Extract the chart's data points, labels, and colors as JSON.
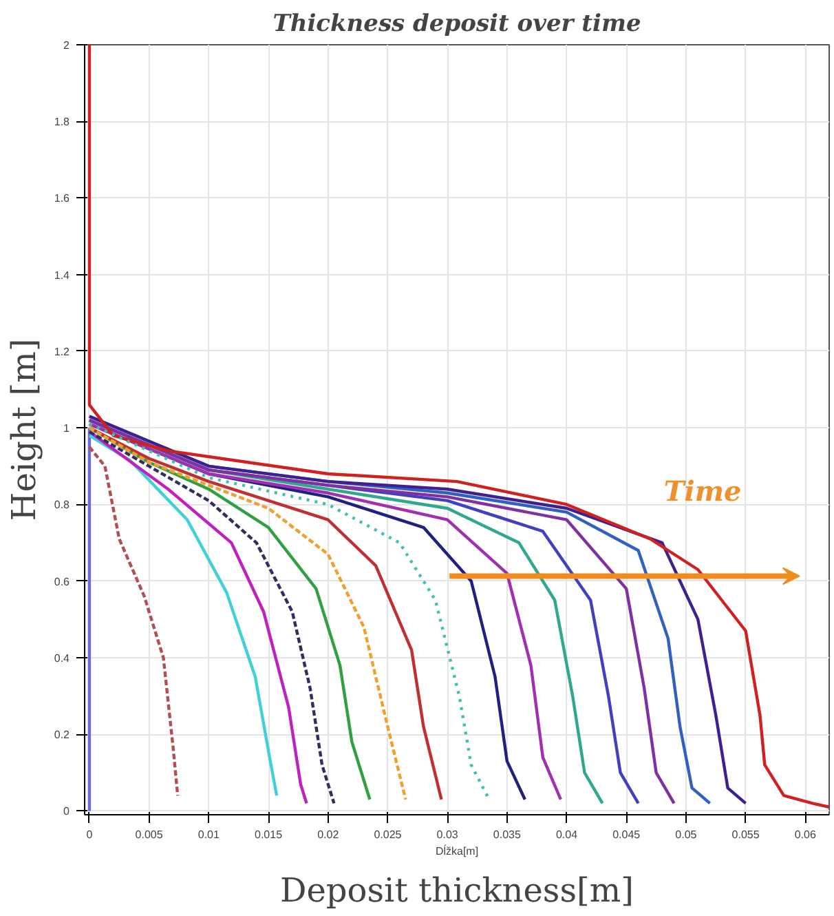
{
  "chart_data": {
    "type": "line",
    "title": "Thickness deposit over time",
    "xlabel": "Deposit thickness[m]",
    "ylabel": "Height [m]",
    "annotations": [
      "Dĺžka[m]",
      "Time"
    ],
    "xlim": [
      -0.0004,
      0.062
    ],
    "ylim": [
      -0.01,
      2
    ],
    "xticks": [
      0,
      0.005,
      0.01,
      0.015,
      0.02,
      0.025,
      0.03,
      0.035,
      0.04,
      0.045,
      0.05,
      0.055,
      0.06
    ],
    "yticks": [
      0,
      0.2,
      0.4,
      0.6,
      0.8,
      1,
      1.2,
      1.4,
      1.6,
      1.8,
      2
    ],
    "grid": true,
    "marker": "none",
    "series": [
      {
        "color": "#6a6ad8",
        "line_style": "solid",
        "x": [
          0,
          0
        ],
        "values": [
          0,
          1.0
        ]
      },
      {
        "color": "#b05050",
        "line_style": "dashed",
        "x": [
          0,
          0.0013,
          0.0025,
          0.0046,
          0.0062,
          0.007,
          0.0074
        ],
        "values": [
          0.95,
          0.9,
          0.71,
          0.56,
          0.4,
          0.17,
          0.04
        ]
      },
      {
        "color": "#40d0d8",
        "line_style": "solid",
        "x": [
          0,
          0.0034,
          0.0082,
          0.0115,
          0.0139,
          0.0151,
          0.0157
        ],
        "values": [
          0.98,
          0.915,
          0.76,
          0.57,
          0.35,
          0.14,
          0.04
        ]
      },
      {
        "color": "#c020c0",
        "line_style": "solid",
        "x": [
          0,
          0.0066,
          0.0119,
          0.0146,
          0.0167,
          0.0177,
          0.0182
        ],
        "values": [
          0.99,
          0.84,
          0.7,
          0.52,
          0.27,
          0.07,
          0.02
        ]
      },
      {
        "color": "#303060",
        "line_style": "dashed",
        "x": [
          0,
          0.005,
          0.01,
          0.014,
          0.017,
          0.0185,
          0.0195,
          0.0205
        ],
        "values": [
          0.99,
          0.9,
          0.81,
          0.7,
          0.52,
          0.32,
          0.12,
          0.02
        ]
      },
      {
        "color": "#30a040",
        "line_style": "solid",
        "x": [
          0,
          0.005,
          0.01,
          0.015,
          0.019,
          0.021,
          0.022,
          0.0235
        ],
        "values": [
          1.0,
          0.91,
          0.84,
          0.74,
          0.58,
          0.38,
          0.18,
          0.03
        ]
      },
      {
        "color": "#f0a030",
        "line_style": "dashed",
        "x": [
          0,
          0.005,
          0.01,
          0.015,
          0.02,
          0.023,
          0.025,
          0.0265
        ],
        "values": [
          1.0,
          0.91,
          0.85,
          0.79,
          0.67,
          0.48,
          0.22,
          0.03
        ]
      },
      {
        "color": "#c03030",
        "line_style": "solid",
        "x": [
          0,
          0.005,
          0.01,
          0.02,
          0.024,
          0.027,
          0.028,
          0.0295
        ],
        "values": [
          1.0,
          0.92,
          0.86,
          0.76,
          0.64,
          0.42,
          0.22,
          0.03
        ]
      },
      {
        "color": "#40c0b0",
        "line_style": "dotted",
        "x": [
          0,
          0.01,
          0.02,
          0.026,
          0.029,
          0.031,
          0.032,
          0.0335
        ],
        "values": [
          1.01,
          0.87,
          0.8,
          0.7,
          0.55,
          0.3,
          0.12,
          0.03
        ]
      },
      {
        "color": "#202080",
        "line_style": "solid",
        "x": [
          0,
          0.01,
          0.02,
          0.028,
          0.032,
          0.034,
          0.035,
          0.0365
        ],
        "values": [
          1.01,
          0.88,
          0.82,
          0.74,
          0.6,
          0.35,
          0.13,
          0.03
        ]
      },
      {
        "color": "#a030b0",
        "line_style": "solid",
        "x": [
          0,
          0.01,
          0.02,
          0.03,
          0.035,
          0.037,
          0.038,
          0.0395
        ],
        "values": [
          1.01,
          0.88,
          0.83,
          0.76,
          0.62,
          0.38,
          0.14,
          0.03
        ]
      },
      {
        "color": "#30a890",
        "line_style": "solid",
        "x": [
          0,
          0.01,
          0.02,
          0.03,
          0.036,
          0.039,
          0.0405,
          0.0415,
          0.043
        ],
        "values": [
          1.02,
          0.89,
          0.84,
          0.79,
          0.7,
          0.55,
          0.3,
          0.1,
          0.02
        ]
      },
      {
        "color": "#4040c0",
        "line_style": "solid",
        "x": [
          0,
          0.01,
          0.02,
          0.03,
          0.038,
          0.042,
          0.0435,
          0.0445,
          0.046
        ],
        "values": [
          1.02,
          0.89,
          0.85,
          0.81,
          0.73,
          0.55,
          0.3,
          0.1,
          0.02
        ]
      },
      {
        "color": "#8030a0",
        "line_style": "solid",
        "x": [
          0,
          0.01,
          0.02,
          0.03,
          0.04,
          0.045,
          0.0465,
          0.0475,
          0.049
        ],
        "values": [
          1.02,
          0.89,
          0.85,
          0.82,
          0.76,
          0.58,
          0.32,
          0.1,
          0.02
        ]
      },
      {
        "color": "#3060c0",
        "line_style": "solid",
        "x": [
          0,
          0.01,
          0.02,
          0.03,
          0.04,
          0.046,
          0.0485,
          0.0495,
          0.0505,
          0.052
        ],
        "values": [
          1.03,
          0.9,
          0.86,
          0.83,
          0.78,
          0.68,
          0.45,
          0.22,
          0.06,
          0.02
        ]
      },
      {
        "color": "#402090",
        "line_style": "solid",
        "x": [
          0,
          0.01,
          0.02,
          0.03,
          0.04,
          0.048,
          0.051,
          0.0525,
          0.0535,
          0.055
        ],
        "values": [
          1.03,
          0.9,
          0.86,
          0.84,
          0.79,
          0.7,
          0.5,
          0.25,
          0.06,
          0.02
        ]
      },
      {
        "color": "#d02020",
        "line_style": "solid",
        "x": [
          0,
          0,
          0.002,
          0.0066,
          0.02,
          0.0308,
          0.04,
          0.047,
          0.051,
          0.055,
          0.0562,
          0.0566,
          0.0582,
          0.0606,
          0.062
        ],
        "values": [
          2.0,
          1.06,
          0.98,
          0.94,
          0.88,
          0.86,
          0.8,
          0.71,
          0.63,
          0.47,
          0.25,
          0.12,
          0.04,
          0.02,
          0.01
        ]
      }
    ]
  }
}
